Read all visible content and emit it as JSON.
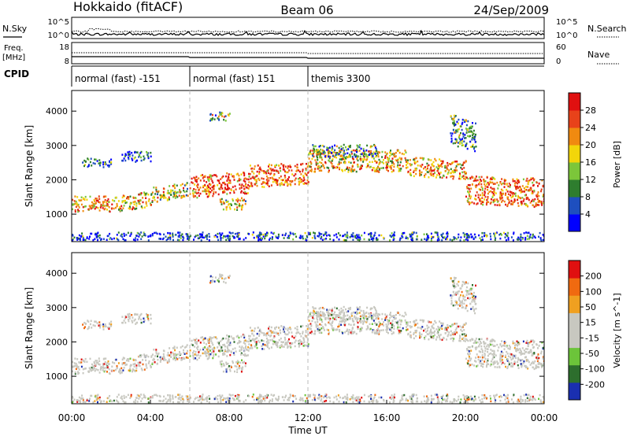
{
  "header": {
    "site": "Hokkaido (fitACF)",
    "beam": "Beam 06",
    "date": "24/Sep/2009"
  },
  "top_panels": {
    "nsky_label": "N.Sky",
    "nsearch_label": "N.Search",
    "noise_ticks": [
      "10^5",
      "10^0"
    ],
    "freq_label_line1": "Freq.",
    "freq_label_line2": "[MHz]",
    "freq_ticks": [
      "18",
      "8"
    ],
    "nave_label": "Nave",
    "nave_ticks": [
      "60",
      "0"
    ],
    "cpid_label": "CPID"
  },
  "cpid_segments": [
    {
      "label": "normal (fast) -151",
      "start_hour": 0,
      "end_hour": 6
    },
    {
      "label": "normal (fast) 151",
      "start_hour": 6,
      "end_hour": 12
    },
    {
      "label": "themis 3300",
      "start_hour": 12,
      "end_hour": 24
    }
  ],
  "chart_data": {
    "type": "heatmap",
    "xlabel": "Time UT",
    "x_ticks": [
      "00:00",
      "04:00",
      "08:00",
      "12:00",
      "16:00",
      "20:00",
      "00:00"
    ],
    "xlim_hours": [
      0,
      24
    ],
    "ylabel": "Slant Range [km]",
    "y_ticks": [
      1000,
      2000,
      3000,
      4000
    ],
    "ylim_km": [
      200,
      4600
    ],
    "panels": [
      {
        "id": "power",
        "colorbar_label": "Power [dB]",
        "colorbar_ticks": [
          "4",
          "8",
          "12",
          "16",
          "20",
          "24",
          "28"
        ],
        "colorbar_range": [
          0,
          32
        ],
        "colorbar_colors": [
          "#0000ff",
          "#1e4fbf",
          "#2e7d2e",
          "#7cc63a",
          "#f2d60a",
          "#f08a10",
          "#e8421a",
          "#e01010"
        ]
      },
      {
        "id": "velocity",
        "colorbar_label": "Velocity [m s^-1]",
        "colorbar_ticks": [
          "200",
          "100",
          "50",
          "15",
          "-15",
          "-50",
          "-100",
          "-200"
        ],
        "colorbar_range": [
          -250,
          250
        ],
        "colorbar_colors": [
          "#1a2fb0",
          "#2d6e2d",
          "#6cc43a",
          "#c8c8c0",
          "#c8c8c0",
          "#f0a020",
          "#f06a10",
          "#e01010"
        ]
      }
    ],
    "scatter_bands": [
      {
        "t0": 0.0,
        "t1": 2.2,
        "r0": 1050,
        "r1": 1500,
        "slope": 0,
        "level": 0.85
      },
      {
        "t0": 2.2,
        "t1": 4.0,
        "r0": 1050,
        "r1": 1500,
        "slope": 80,
        "level": 0.75
      },
      {
        "t0": 4.0,
        "t1": 6.0,
        "r0": 1300,
        "r1": 1750,
        "slope": 80,
        "level": 0.7
      },
      {
        "t0": 6.0,
        "t1": 9.0,
        "r0": 1450,
        "r1": 2100,
        "slope": 40,
        "level": 0.95
      },
      {
        "t0": 7.5,
        "t1": 8.8,
        "r0": 1100,
        "r1": 1450,
        "slope": 0,
        "level": 0.7
      },
      {
        "t0": 9.0,
        "t1": 12.0,
        "r0": 1750,
        "r1": 2400,
        "slope": 30,
        "level": 0.95
      },
      {
        "t0": 12.0,
        "t1": 17.0,
        "r0": 2200,
        "r1": 2850,
        "slope": 0,
        "level": 0.75
      },
      {
        "t0": 17.0,
        "t1": 20.0,
        "r0": 2100,
        "r1": 2650,
        "slope": -40,
        "level": 0.8
      },
      {
        "t0": 20.0,
        "t1": 24.0,
        "r0": 1250,
        "r1": 2100,
        "slope": -20,
        "level": 0.9
      },
      {
        "t0": 0.5,
        "t1": 2.0,
        "r0": 2350,
        "r1": 2600,
        "slope": 0,
        "level": 0.35
      },
      {
        "t0": 2.5,
        "t1": 4.0,
        "r0": 2500,
        "r1": 2800,
        "slope": 0,
        "level": 0.35
      },
      {
        "t0": 12.2,
        "t1": 15.5,
        "r0": 2650,
        "r1": 3000,
        "slope": 0,
        "level": 0.5
      },
      {
        "t0": 7.0,
        "t1": 8.0,
        "r0": 3700,
        "r1": 3950,
        "slope": 0,
        "level": 0.55
      },
      {
        "t0": 19.2,
        "t1": 20.5,
        "r0": 3000,
        "r1": 3900,
        "slope": -150,
        "level": 0.45
      },
      {
        "t0": 0.0,
        "t1": 24.0,
        "r0": 220,
        "r1": 450,
        "slope": 0,
        "level": 0.3
      }
    ]
  }
}
